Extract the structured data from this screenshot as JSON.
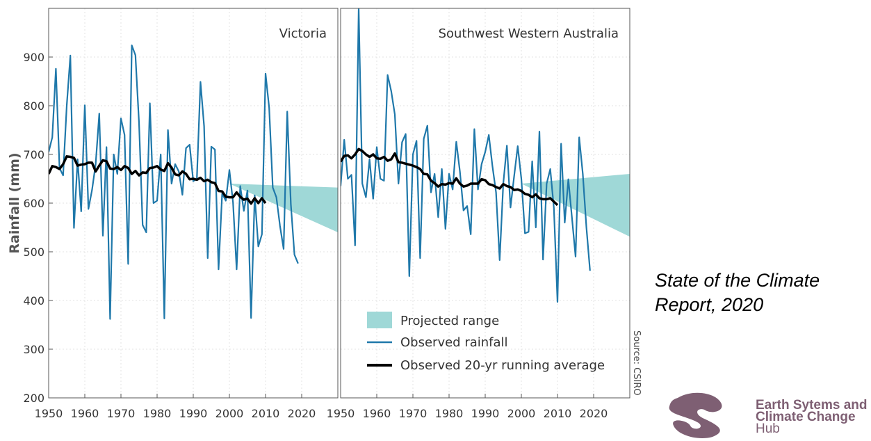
{
  "chart_data": [
    {
      "type": "line",
      "title": "Victoria",
      "ylabel": "Rainfall (mm)",
      "ylim": [
        200,
        1000
      ],
      "xlim": [
        1950,
        2030
      ],
      "yticks": [
        "200",
        "300",
        "400",
        "500",
        "600",
        "700",
        "800",
        "900"
      ],
      "xticks": [
        "1950",
        "1960",
        "1970",
        "1980",
        "1990",
        "2000",
        "2010",
        "2020"
      ],
      "grid": true,
      "series": [
        {
          "name": "Observed rainfall",
          "x": [
            1950,
            1951,
            1952,
            1953,
            1954,
            1955,
            1956,
            1957,
            1958,
            1959,
            1960,
            1961,
            1962,
            1963,
            1964,
            1965,
            1966,
            1967,
            1968,
            1969,
            1970,
            1971,
            1972,
            1973,
            1974,
            1975,
            1976,
            1977,
            1978,
            1979,
            1980,
            1981,
            1982,
            1983,
            1984,
            1985,
            1986,
            1987,
            1988,
            1989,
            1990,
            1991,
            1992,
            1993,
            1994,
            1995,
            1996,
            1997,
            1998,
            1999,
            2000,
            2001,
            2002,
            2003,
            2004,
            2005,
            2006,
            2007,
            2008,
            2009,
            2010,
            2011,
            2012,
            2013,
            2014,
            2015,
            2016,
            2017,
            2018,
            2019
          ],
          "y": [
            705,
            735,
            876,
            672,
            657,
            800,
            903,
            549,
            690,
            583,
            801,
            588,
            627,
            680,
            784,
            533,
            715,
            362,
            700,
            660,
            774,
            740,
            475,
            924,
            904,
            765,
            555,
            540,
            805,
            600,
            605,
            700,
            363,
            750,
            640,
            680,
            665,
            617,
            713,
            720,
            645,
            650,
            849,
            758,
            487,
            716,
            710,
            464,
            620,
            605,
            668,
            602,
            464,
            635,
            584,
            626,
            364,
            616,
            511,
            536,
            866,
            796,
            632,
            612,
            553,
            506,
            788,
            598,
            494,
            476
          ]
        },
        {
          "name": "Observed 20-yr running average",
          "x": [
            1950,
            1951,
            1952,
            1953,
            1954,
            1955,
            1956,
            1957,
            1958,
            1959,
            1960,
            1961,
            1962,
            1963,
            1964,
            1965,
            1966,
            1967,
            1968,
            1969,
            1970,
            1971,
            1972,
            1973,
            1974,
            1975,
            1976,
            1977,
            1978,
            1979,
            1980,
            1981,
            1982,
            1983,
            1984,
            1985,
            1986,
            1987,
            1988,
            1989,
            1990,
            1991,
            1992,
            1993,
            1994,
            1995,
            1996,
            1997,
            1998,
            1999,
            2000,
            2001,
            2002,
            2003,
            2004,
            2005,
            2006,
            2007,
            2008,
            2009,
            2010
          ],
          "y": [
            660,
            676,
            674,
            670,
            680,
            696,
            695,
            693,
            677,
            679,
            680,
            683,
            683,
            665,
            677,
            688,
            686,
            671,
            670,
            674,
            668,
            676,
            672,
            660,
            666,
            657,
            663,
            662,
            672,
            673,
            676,
            669,
            666,
            682,
            673,
            659,
            657,
            665,
            660,
            649,
            650,
            648,
            652,
            645,
            648,
            643,
            641,
            625,
            624,
            613,
            612,
            612,
            622,
            613,
            607,
            609,
            599,
            610,
            600,
            610,
            600
          ]
        }
      ],
      "projected_range": {
        "x": [
          2000,
          2030
        ],
        "upper": [
          640,
          632
        ],
        "lower": [
          640,
          540
        ]
      }
    },
    {
      "type": "line",
      "title": "Southwest Western Australia",
      "ylim": [
        200,
        1000
      ],
      "xlim": [
        1950,
        2030
      ],
      "xticks": [
        "1950",
        "1960",
        "1970",
        "1980",
        "1990",
        "2000",
        "2010",
        "2020"
      ],
      "grid": true,
      "series": [
        {
          "name": "Observed rainfall",
          "x": [
            1950,
            1951,
            1952,
            1953,
            1954,
            1955,
            1956,
            1957,
            1958,
            1959,
            1960,
            1961,
            1962,
            1963,
            1964,
            1965,
            1966,
            1967,
            1968,
            1969,
            1970,
            1971,
            1972,
            1973,
            1974,
            1975,
            1976,
            1977,
            1978,
            1979,
            1980,
            1981,
            1982,
            1983,
            1984,
            1985,
            1986,
            1987,
            1988,
            1989,
            1990,
            1991,
            1992,
            1993,
            1994,
            1995,
            1996,
            1997,
            1998,
            1999,
            2000,
            2001,
            2002,
            2003,
            2004,
            2005,
            2006,
            2007,
            2008,
            2009,
            2010,
            2011,
            2012,
            2013,
            2014,
            2015,
            2016,
            2017,
            2018,
            2019
          ],
          "y": [
            635,
            730,
            650,
            658,
            513,
            1000,
            640,
            612,
            690,
            609,
            715,
            650,
            646,
            863,
            830,
            782,
            640,
            725,
            742,
            450,
            700,
            728,
            487,
            732,
            759,
            622,
            660,
            571,
            670,
            547,
            660,
            628,
            726,
            665,
            585,
            594,
            536,
            752,
            628,
            680,
            705,
            740,
            676,
            622,
            483,
            640,
            718,
            591,
            655,
            717,
            650,
            538,
            541,
            686,
            550,
            747,
            484,
            640,
            670,
            590,
            397,
            722,
            560,
            649,
            570,
            490,
            735,
            660,
            550,
            461
          ]
        },
        {
          "name": "Observed 20-yr running average",
          "x": [
            1950,
            1951,
            1952,
            1953,
            1954,
            1955,
            1956,
            1957,
            1958,
            1959,
            1960,
            1961,
            1962,
            1963,
            1964,
            1965,
            1966,
            1967,
            1968,
            1969,
            1970,
            1971,
            1972,
            1973,
            1974,
            1975,
            1976,
            1977,
            1978,
            1979,
            1980,
            1981,
            1982,
            1983,
            1984,
            1985,
            1986,
            1987,
            1988,
            1989,
            1990,
            1991,
            1992,
            1993,
            1994,
            1995,
            1996,
            1997,
            1998,
            1999,
            2000,
            2001,
            2002,
            2003,
            2004,
            2005,
            2006,
            2007,
            2008,
            2009,
            2010
          ],
          "y": [
            685,
            697,
            698,
            692,
            700,
            711,
            707,
            700,
            695,
            700,
            692,
            691,
            695,
            687,
            690,
            702,
            684,
            683,
            681,
            679,
            677,
            674,
            670,
            660,
            659,
            646,
            641,
            634,
            639,
            638,
            641,
            640,
            651,
            640,
            634,
            636,
            640,
            640,
            640,
            649,
            647,
            639,
            637,
            633,
            630,
            639,
            635,
            633,
            627,
            628,
            625,
            619,
            617,
            612,
            618,
            610,
            608,
            608,
            610,
            603,
            596
          ]
        }
      ],
      "projected_range": {
        "x": [
          2000,
          2030
        ],
        "upper": [
          640,
          660
        ],
        "lower": [
          640,
          531
        ]
      }
    }
  ],
  "legend": {
    "projected": "Projected range",
    "observed": "Observed rainfall",
    "average": "Observed 20-yr running average"
  },
  "colors": {
    "observed": "#1f78aa",
    "average": "#000000",
    "projected": "#9fd8d7"
  },
  "source": "Source: CSIRO",
  "report": {
    "line1": "State of the Climate",
    "line2": "Report, 2020"
  },
  "hub": {
    "line1": "Earth Sytems and",
    "line2": "Climate Change",
    "line3": "Hub"
  }
}
